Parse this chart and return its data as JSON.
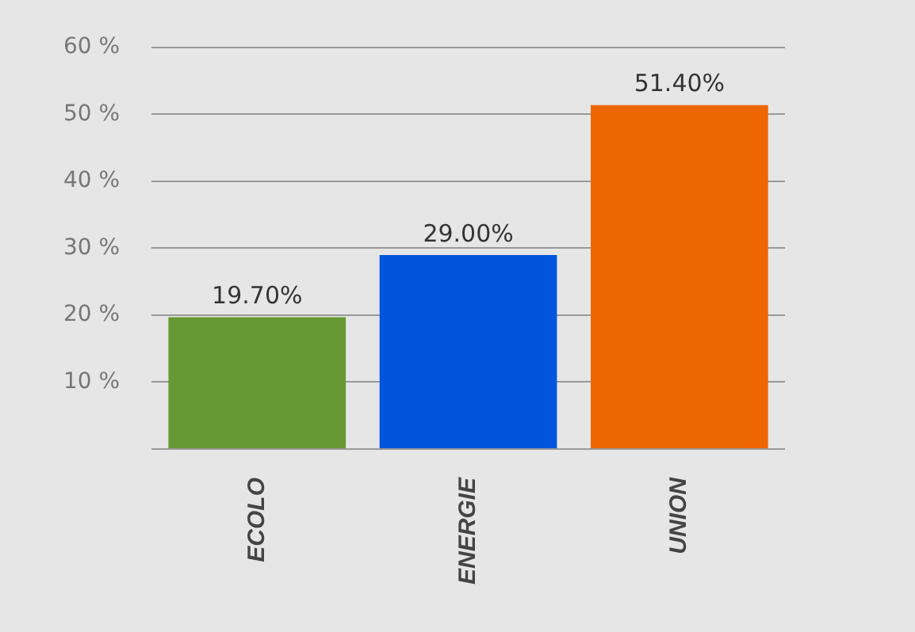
{
  "chart_data": {
    "type": "bar",
    "categories": [
      "ECOLO",
      "ENERGIE",
      "UNION"
    ],
    "values": [
      19.7,
      29.0,
      51.4
    ],
    "colors": [
      "#669933",
      "#0055dd",
      "#ee6600"
    ],
    "value_labels": [
      "19.70%",
      "29.00%",
      "51.40%"
    ],
    "ylim": [
      0,
      60
    ],
    "yticks": [
      {
        "value": 0,
        "label": null
      },
      {
        "value": 10,
        "label": "10 %"
      },
      {
        "value": 20,
        "label": "20 %"
      },
      {
        "value": 30,
        "label": "30 %"
      },
      {
        "value": 40,
        "label": "40 %"
      },
      {
        "value": 50,
        "label": "50 %"
      },
      {
        "value": 60,
        "label": "60 %"
      }
    ],
    "grid": "y",
    "legend": false
  }
}
